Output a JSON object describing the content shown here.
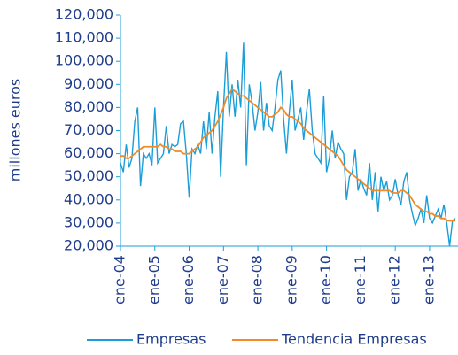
{
  "chart_data": {
    "type": "line",
    "ylabel": "millones euros",
    "categories": [
      "ene-04",
      null,
      null,
      null,
      null,
      null,
      null,
      null,
      null,
      null,
      null,
      null,
      "ene-05",
      null,
      null,
      null,
      null,
      null,
      null,
      null,
      null,
      null,
      null,
      null,
      "ene-06",
      null,
      null,
      null,
      null,
      null,
      null,
      null,
      null,
      null,
      null,
      null,
      "ene-07",
      null,
      null,
      null,
      null,
      null,
      null,
      null,
      null,
      null,
      null,
      null,
      "ene-08",
      null,
      null,
      null,
      null,
      null,
      null,
      null,
      null,
      null,
      null,
      null,
      "ene-09",
      null,
      null,
      null,
      null,
      null,
      null,
      null,
      null,
      null,
      null,
      null,
      "ene-10",
      null,
      null,
      null,
      null,
      null,
      null,
      null,
      null,
      null,
      null,
      null,
      "ene-11",
      null,
      null,
      null,
      null,
      null,
      null,
      null,
      null,
      null,
      null,
      null,
      "ene-12",
      null,
      null,
      null,
      null,
      null,
      null,
      null,
      null,
      null,
      null,
      null,
      "ene-13",
      null,
      null,
      null,
      null,
      null,
      null,
      null,
      null,
      null
    ],
    "series": [
      {
        "name": "Empresas",
        "color": "#1b9ed8",
        "values": [
          56000,
          52000,
          64000,
          54000,
          58000,
          74000,
          80000,
          46000,
          60000,
          58000,
          60000,
          55000,
          80000,
          56000,
          58000,
          60000,
          72000,
          60000,
          64000,
          63000,
          64000,
          73000,
          74000,
          60000,
          41000,
          62000,
          60000,
          64000,
          60000,
          74000,
          62000,
          78000,
          60000,
          76000,
          87000,
          50000,
          80000,
          104000,
          76000,
          90000,
          76000,
          92000,
          80000,
          108000,
          55000,
          90000,
          82000,
          70000,
          78000,
          91000,
          70000,
          82000,
          72000,
          70000,
          80000,
          92000,
          96000,
          75000,
          60000,
          78000,
          92000,
          70000,
          75000,
          80000,
          66000,
          78000,
          88000,
          70000,
          60000,
          58000,
          56000,
          85000,
          52000,
          58000,
          70000,
          58000,
          65000,
          62000,
          60000,
          40000,
          50000,
          52000,
          62000,
          44000,
          49000,
          45000,
          42000,
          56000,
          40000,
          52000,
          35000,
          50000,
          44000,
          48000,
          40000,
          42000,
          49000,
          42000,
          38000,
          48000,
          52000,
          40000,
          34000,
          29000,
          32000,
          36000,
          30000,
          42000,
          32000,
          30000,
          33000,
          36000,
          32000,
          38000,
          30000,
          20000,
          31000,
          32000
        ]
      },
      {
        "name": "Tendencia Empresas",
        "color": "#f28a26",
        "values": [
          59000,
          59000,
          58000,
          58000,
          59000,
          60000,
          61000,
          62000,
          63000,
          63000,
          63000,
          63000,
          63000,
          63000,
          64000,
          63000,
          63000,
          62000,
          62000,
          61000,
          61000,
          61000,
          60000,
          60000,
          60000,
          61000,
          62000,
          63000,
          65000,
          67000,
          68000,
          69000,
          70000,
          72000,
          74000,
          77000,
          80000,
          84000,
          86000,
          88000,
          87000,
          86000,
          85000,
          85000,
          84000,
          83000,
          82000,
          81000,
          80000,
          79000,
          78000,
          77000,
          76000,
          76000,
          77000,
          78000,
          80000,
          79000,
          77000,
          76000,
          76000,
          75000,
          74000,
          73000,
          71000,
          70000,
          69000,
          68000,
          67000,
          66000,
          65000,
          64000,
          63000,
          62000,
          61000,
          60000,
          59000,
          57000,
          55000,
          53000,
          52000,
          51000,
          50000,
          49000,
          48000,
          47000,
          46000,
          45000,
          44000,
          44000,
          44000,
          44000,
          44000,
          44000,
          44000,
          43000,
          43000,
          43000,
          44000,
          44000,
          43000,
          42000,
          40000,
          38000,
          37000,
          36000,
          35000,
          35000,
          34000,
          34000,
          33000,
          33000,
          32000,
          32000,
          31000,
          31000,
          31000,
          31000
        ]
      }
    ],
    "ylim": [
      20000,
      120000
    ],
    "yticks": [
      {
        "value": 20000,
        "label": "20,000"
      },
      {
        "value": 30000,
        "label": "30,000"
      },
      {
        "value": 40000,
        "label": "40,000"
      },
      {
        "value": 50000,
        "label": "50,000"
      },
      {
        "value": 60000,
        "label": "60,000"
      },
      {
        "value": 70000,
        "label": "70,000"
      },
      {
        "value": 80000,
        "label": "80,000"
      },
      {
        "value": 90000,
        "label": "90,000"
      },
      {
        "value": 100000,
        "label": "100,000"
      },
      {
        "value": 110000,
        "label": "110,000"
      },
      {
        "value": 120000,
        "label": "120,000"
      }
    ],
    "legend": "bottom"
  }
}
